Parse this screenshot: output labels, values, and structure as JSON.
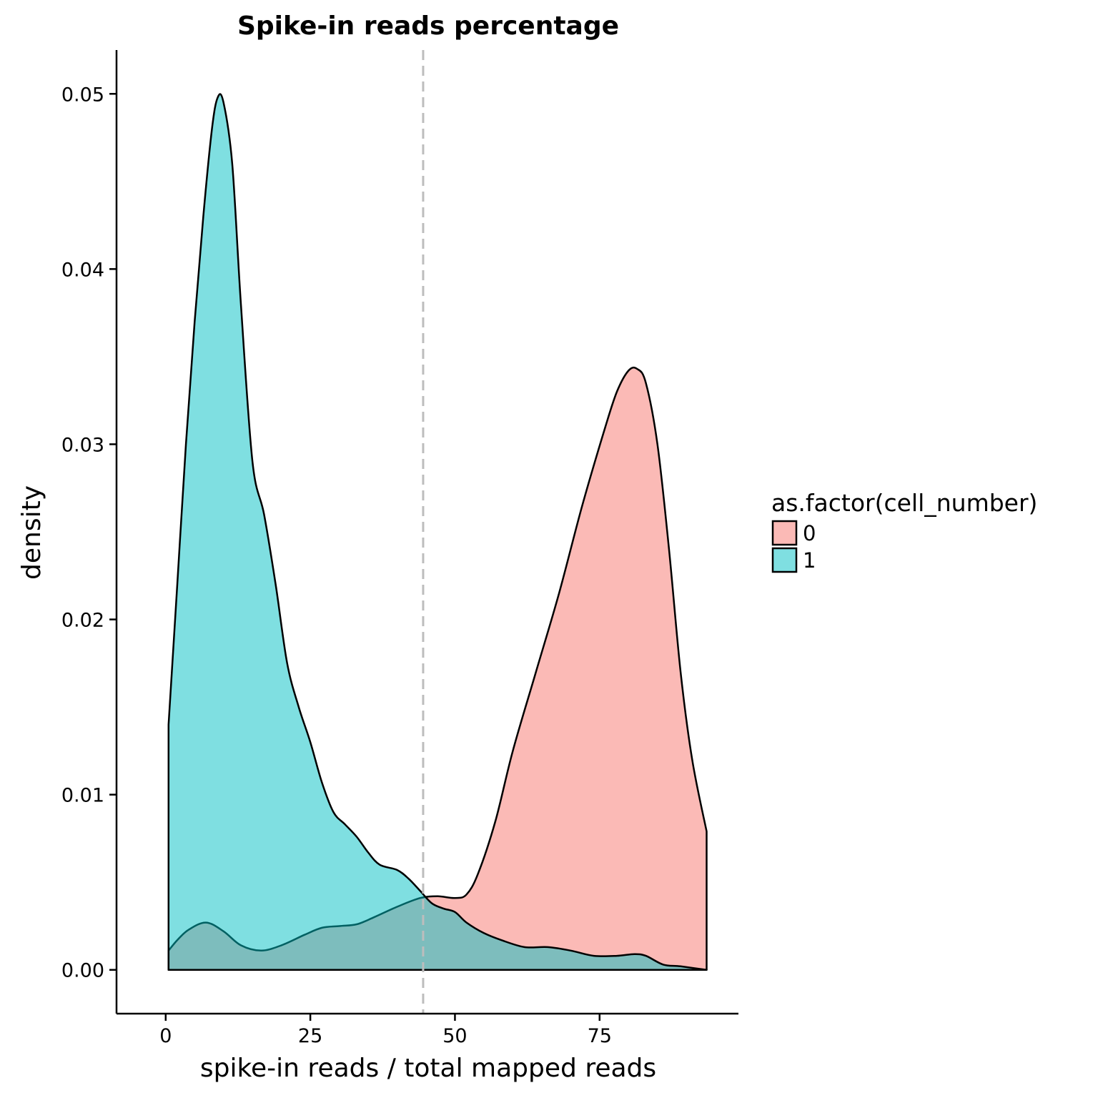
{
  "chart_data": {
    "type": "area",
    "title": "Spike-in reads percentage",
    "xlabel": "spike-in reads / total mapped reads",
    "ylabel": "density",
    "xlim": [
      -8.5,
      99
    ],
    "ylim": [
      -0.0025,
      0.0525
    ],
    "x_ticks": [
      0,
      25,
      50,
      75
    ],
    "x_tick_labels": [
      "0",
      "25",
      "50",
      "75"
    ],
    "y_ticks": [
      0,
      0.01,
      0.02,
      0.03,
      0.04,
      0.05
    ],
    "y_tick_labels": [
      "0.00",
      "0.01",
      "0.02",
      "0.03",
      "0.04",
      "0.05"
    ],
    "grid": false,
    "legend": {
      "title": "as.factor(cell_number)",
      "position": "right"
    },
    "reference_line": {
      "x": 44.5,
      "style": "dashed",
      "color": "#bdbdbd"
    },
    "series": [
      {
        "name": "0",
        "color": "#F8766D",
        "fill_opacity": 0.5,
        "x": [
          0.5,
          2,
          4,
          7,
          10,
          13,
          16.5,
          20,
          24,
          27,
          30,
          33,
          36,
          40,
          44,
          47,
          50,
          52,
          54,
          57,
          60,
          64,
          68,
          72,
          76,
          78,
          80,
          81.5,
          83,
          85,
          87,
          89,
          91,
          93.5
        ],
        "y": [
          0.0011,
          0.0017,
          0.0023,
          0.0027,
          0.0022,
          0.0014,
          0.0011,
          0.0014,
          0.002,
          0.0024,
          0.0025,
          0.0026,
          0.003,
          0.0036,
          0.0041,
          0.0042,
          0.0041,
          0.0043,
          0.0055,
          0.0085,
          0.0125,
          0.017,
          0.0215,
          0.0265,
          0.031,
          0.033,
          0.0342,
          0.0343,
          0.0335,
          0.03,
          0.024,
          0.017,
          0.012,
          0.0079
        ]
      },
      {
        "name": "1",
        "color": "#00BFC4",
        "fill_opacity": 0.5,
        "x": [
          0.5,
          2,
          3.5,
          5,
          6.5,
          8,
          9,
          10,
          11.5,
          13,
          15,
          17,
          19,
          21,
          23,
          25,
          27,
          29,
          31,
          33,
          35,
          37,
          40,
          42,
          44,
          46,
          48,
          50,
          52,
          55,
          58,
          62,
          66,
          70,
          74,
          78,
          81,
          83,
          86,
          89,
          93.5
        ],
        "y": [
          0.014,
          0.022,
          0.03,
          0.037,
          0.043,
          0.048,
          0.0498,
          0.0495,
          0.046,
          0.038,
          0.029,
          0.026,
          0.022,
          0.0175,
          0.015,
          0.013,
          0.0107,
          0.009,
          0.0083,
          0.0076,
          0.0067,
          0.006,
          0.0057,
          0.0052,
          0.0045,
          0.0038,
          0.0035,
          0.0033,
          0.0027,
          0.0021,
          0.0017,
          0.0013,
          0.0013,
          0.0011,
          0.0008,
          0.0008,
          0.0009,
          0.0008,
          0.0003,
          0.0002,
          0.0
        ]
      }
    ]
  }
}
